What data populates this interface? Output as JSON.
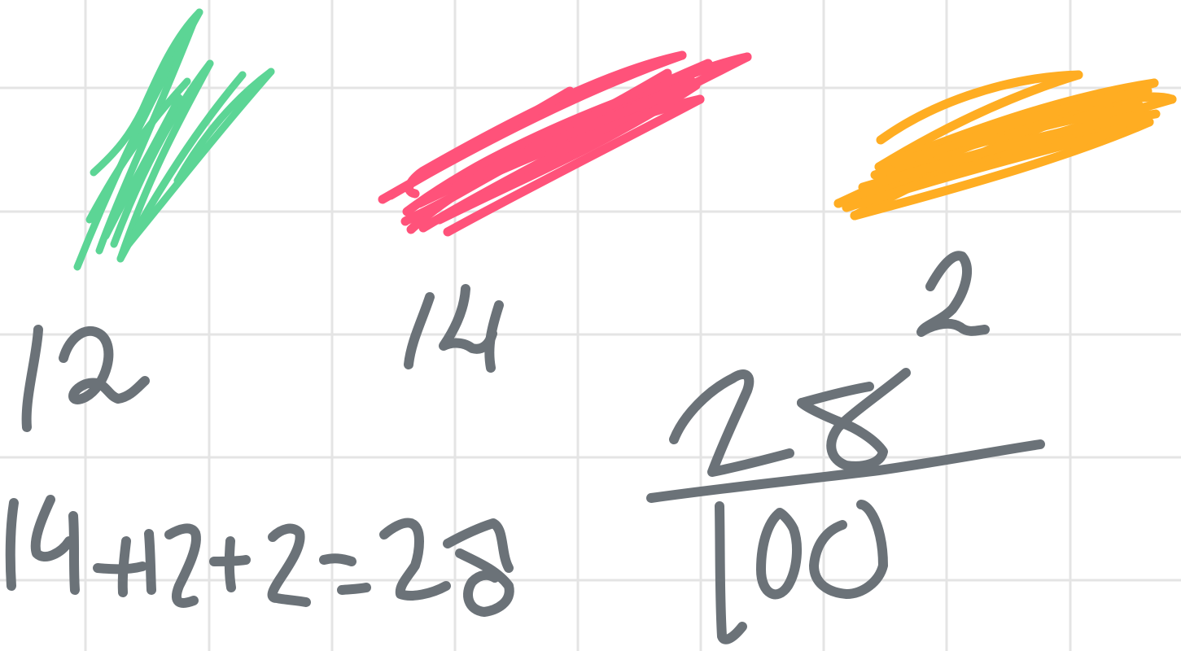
{
  "board": {
    "background": "#ffffff",
    "grid_color": "#e4e4e4",
    "ink_color": "#6b7278"
  },
  "swatches": [
    {
      "name": "green",
      "color": "#5cd595",
      "label": "12"
    },
    {
      "name": "pink",
      "color": "#ff527a",
      "label": "14"
    },
    {
      "name": "orange",
      "color": "#ffad22",
      "label": "2"
    }
  ],
  "equation": {
    "text": "14+12+2=28"
  },
  "fraction": {
    "numerator": "28",
    "denominator": "100"
  }
}
